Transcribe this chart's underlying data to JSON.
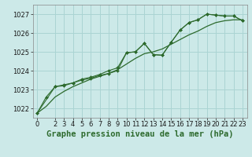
{
  "background_color": "#cce9e8",
  "grid_color": "#aad4d3",
  "line_color": "#2d6a2d",
  "marker_color": "#2d6a2d",
  "title": "Graphe pression niveau de la mer (hPa)",
  "title_fontsize": 7.5,
  "tick_fontsize": 6,
  "ylim": [
    1021.5,
    1027.5
  ],
  "yticks": [
    1022,
    1023,
    1024,
    1025,
    1026,
    1027
  ],
  "xlim": [
    -0.5,
    23.5
  ],
  "xticks": [
    0,
    2,
    3,
    4,
    5,
    6,
    7,
    8,
    9,
    10,
    11,
    12,
    13,
    14,
    15,
    16,
    17,
    18,
    19,
    20,
    21,
    22,
    23
  ],
  "series_main": {
    "x": [
      0,
      1,
      2,
      3,
      4,
      5,
      6,
      7,
      8,
      9,
      10,
      11,
      12,
      13,
      14,
      15,
      16,
      17,
      18,
      19,
      20,
      21,
      22,
      23
    ],
    "y": [
      1021.75,
      1022.6,
      1023.15,
      1023.2,
      1023.35,
      1023.55,
      1023.65,
      1023.8,
      1024.0,
      1024.15,
      1024.95,
      1025.0,
      1025.45,
      1024.85,
      1024.82,
      1025.5,
      1026.15,
      1026.55,
      1026.7,
      1027.0,
      1026.95,
      1026.9,
      1026.9,
      1026.65
    ]
  },
  "series_jagged": {
    "x": [
      0,
      2,
      3,
      4,
      5,
      6,
      7,
      8,
      9,
      10,
      11,
      12,
      13,
      14,
      15,
      16,
      17,
      18,
      19,
      20,
      21,
      22,
      23
    ],
    "y": [
      1021.75,
      1023.15,
      1023.25,
      1023.35,
      1023.5,
      1023.6,
      1023.75,
      1023.85,
      1024.0,
      1024.95,
      1025.0,
      1025.45,
      1024.85,
      1024.82,
      1025.5,
      1026.15,
      1026.55,
      1026.7,
      1027.0,
      1026.95,
      1026.9,
      1026.9,
      1026.65
    ]
  },
  "series_smooth": {
    "x": [
      0,
      1,
      2,
      3,
      4,
      5,
      6,
      7,
      8,
      9,
      10,
      11,
      12,
      13,
      14,
      15,
      16,
      17,
      18,
      19,
      20,
      21,
      22,
      23
    ],
    "y": [
      1021.75,
      1022.1,
      1022.6,
      1022.9,
      1023.15,
      1023.35,
      1023.55,
      1023.7,
      1023.85,
      1024.05,
      1024.35,
      1024.65,
      1024.9,
      1025.0,
      1025.15,
      1025.4,
      1025.65,
      1025.9,
      1026.1,
      1026.35,
      1026.55,
      1026.65,
      1026.7,
      1026.7
    ]
  }
}
